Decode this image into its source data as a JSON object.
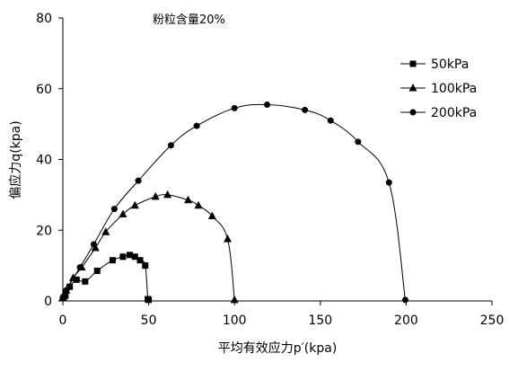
{
  "chart_data": {
    "type": "line",
    "annotation": "粉粒含量20%",
    "xlabel": "平均有效应力p′(kpa)",
    "ylabel": "偏应力q(kpa)",
    "xlim": [
      0,
      250
    ],
    "ylim": [
      0,
      80
    ],
    "xticks": [
      0,
      50,
      100,
      150,
      200,
      250
    ],
    "yticks": [
      0,
      20,
      40,
      60,
      80
    ],
    "grid": false,
    "legend_position": "top-right",
    "series": [
      {
        "name": "50kPa",
        "marker": "square",
        "x": [
          0.5,
          1.5,
          4,
          8,
          13,
          20,
          29,
          35,
          39,
          42,
          45,
          48,
          49.5,
          50
        ],
        "y": [
          1,
          1.5,
          4,
          6,
          5.5,
          8.5,
          11.5,
          12.5,
          13,
          12.5,
          11.5,
          10,
          0.5,
          0.3
        ]
      },
      {
        "name": "100kPa",
        "marker": "triangle",
        "x": [
          0,
          2,
          6,
          11,
          19,
          25,
          35,
          42,
          54,
          61,
          73,
          79,
          87,
          96,
          100
        ],
        "y": [
          1,
          3,
          6.5,
          9.5,
          15,
          19.5,
          24.5,
          27,
          29.5,
          30,
          28.5,
          27,
          24,
          17.5,
          0.3
        ]
      },
      {
        "name": "200kPa",
        "marker": "circle",
        "x": [
          0,
          2,
          10,
          18,
          30,
          44,
          63,
          78,
          100,
          119,
          141,
          156,
          172,
          190,
          199.5
        ],
        "y": [
          1,
          3,
          9.5,
          16,
          26,
          34,
          44,
          49.5,
          54.5,
          55.5,
          54,
          51,
          45,
          33.5,
          0.3
        ]
      }
    ]
  }
}
